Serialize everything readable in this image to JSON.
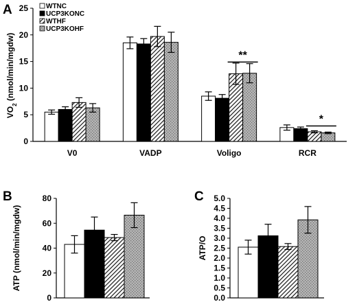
{
  "chart_data": [
    {
      "panel": "A",
      "type": "bar",
      "ylabel": "VO",
      "ylabel_sub": "2",
      "ylabel_rest": " (nmol/min/mgdw)",
      "ylim": [
        0,
        25
      ],
      "yticks": [
        0,
        5,
        10,
        15,
        20,
        25
      ],
      "categories": [
        "V0",
        "VADP",
        "Voligo",
        "RCR"
      ],
      "series": [
        {
          "name": "WTNC",
          "pattern": "white",
          "values": [
            5.5,
            18.5,
            8.5,
            2.6
          ],
          "errors": [
            0.4,
            1.1,
            0.8,
            0.5
          ]
        },
        {
          "name": "UCP3KONC",
          "pattern": "black",
          "values": [
            6.0,
            18.3,
            8.1,
            2.4
          ],
          "errors": [
            0.5,
            1.0,
            0.7,
            0.3
          ]
        },
        {
          "name": "WTHF",
          "pattern": "hatch",
          "values": [
            7.3,
            19.7,
            12.7,
            1.8
          ],
          "errors": [
            0.9,
            1.9,
            2.0,
            0.2
          ]
        },
        {
          "name": "UCP3KOHF",
          "pattern": "dots",
          "values": [
            6.3,
            18.6,
            12.8,
            1.6
          ],
          "errors": [
            0.8,
            1.9,
            1.8,
            0.15
          ]
        }
      ],
      "significance": [
        {
          "label": "**",
          "category": "Voligo",
          "from_series": 2,
          "to_series": 3,
          "y": 14.9
        },
        {
          "label": "*",
          "category": "RCR",
          "from_series": 2,
          "to_series": 3,
          "y": 2.9
        }
      ],
      "legend_position": "top-left"
    },
    {
      "panel": "B",
      "type": "bar",
      "ylabel": "ATP (nmol/min/mgdw)",
      "ylim": [
        0,
        80
      ],
      "yticks": [
        0,
        20,
        40,
        60,
        80
      ],
      "series": [
        {
          "name": "WTNC",
          "pattern": "white",
          "value": 43,
          "error": 7
        },
        {
          "name": "UCP3KONC",
          "pattern": "black",
          "value": 54.5,
          "error": 10.5
        },
        {
          "name": "WTHF",
          "pattern": "hatch",
          "value": 48.5,
          "error": 2.5
        },
        {
          "name": "UCP3KOHF",
          "pattern": "dots",
          "value": 66.5,
          "error": 10
        }
      ]
    },
    {
      "panel": "C",
      "type": "bar",
      "ylabel": "ATP/O",
      "ylim": [
        0,
        5
      ],
      "yticks": [
        0,
        0.5,
        1,
        1.5,
        2,
        2.5,
        3,
        3.5,
        4,
        4.5,
        5
      ],
      "series": [
        {
          "name": "WTNC",
          "pattern": "white",
          "value": 2.55,
          "error": 0.35
        },
        {
          "name": "UCP3KONC",
          "pattern": "black",
          "value": 3.12,
          "error": 0.58
        },
        {
          "name": "WTHF",
          "pattern": "hatch",
          "value": 2.58,
          "error": 0.15
        },
        {
          "name": "UCP3KOHF",
          "pattern": "dots",
          "value": 3.92,
          "error": 0.67
        }
      ]
    }
  ]
}
